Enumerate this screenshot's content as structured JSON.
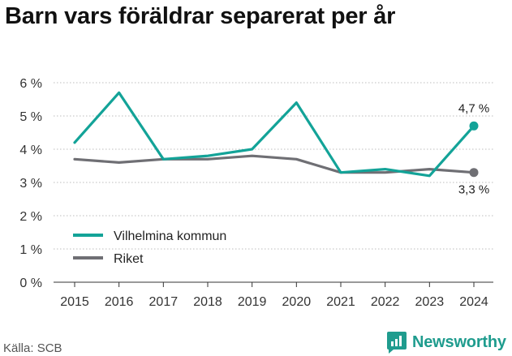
{
  "chart_data": {
    "type": "line",
    "title": "Barn vars föräldrar separerat per år",
    "categories": [
      "2015",
      "2016",
      "2017",
      "2018",
      "2019",
      "2020",
      "2021",
      "2022",
      "2023",
      "2024"
    ],
    "series": [
      {
        "name": "Vilhelmina kommun",
        "color": "#13a398",
        "values": [
          4.2,
          5.7,
          3.7,
          3.8,
          4.0,
          5.4,
          3.3,
          3.4,
          3.2,
          4.7
        ],
        "end_label": "4,7 %"
      },
      {
        "name": "Riket",
        "color": "#6f6f74",
        "values": [
          3.7,
          3.6,
          3.7,
          3.7,
          3.8,
          3.7,
          3.3,
          3.3,
          3.4,
          3.3
        ],
        "end_label": "3,3 %"
      }
    ],
    "y_ticks": [
      0,
      1,
      2,
      3,
      4,
      5,
      6
    ],
    "y_tick_labels": [
      "0 %",
      "1 %",
      "2 %",
      "3 %",
      "4 %",
      "5 %",
      "6 %"
    ],
    "ylim": [
      0,
      6
    ],
    "grid": "horizontal-dotted",
    "legend_position": "bottom-left"
  },
  "source": "Källa: SCB",
  "brand": {
    "name": "Newsworthy",
    "icon": "bar-chart-logo-icon",
    "color": "#1f9c8e"
  }
}
